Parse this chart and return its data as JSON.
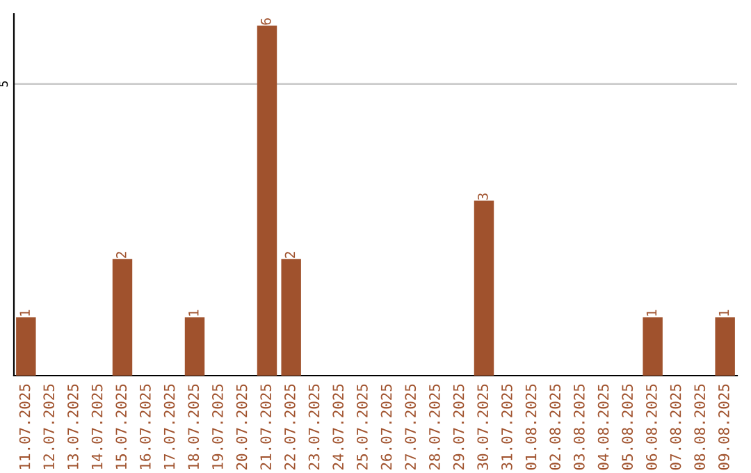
{
  "chart_data": {
    "type": "bar",
    "categories": [
      "11.07.2025",
      "12.07.2025",
      "13.07.2025",
      "14.07.2025",
      "15.07.2025",
      "16.07.2025",
      "17.07.2025",
      "18.07.2025",
      "19.07.2025",
      "20.07.2025",
      "21.07.2025",
      "22.07.2025",
      "23.07.2025",
      "24.07.2025",
      "25.07.2025",
      "26.07.2025",
      "27.07.2025",
      "28.07.2025",
      "29.07.2025",
      "30.07.2025",
      "31.07.2025",
      "01.08.2025",
      "02.08.2025",
      "03.08.2025",
      "04.08.2025",
      "05.08.2025",
      "06.08.2025",
      "07.08.2025",
      "08.08.2025",
      "09.08.2025"
    ],
    "values": [
      1,
      0,
      0,
      0,
      2,
      0,
      0,
      1,
      0,
      0,
      6,
      2,
      0,
      0,
      0,
      0,
      0,
      0,
      0,
      3,
      0,
      0,
      0,
      0,
      0,
      0,
      1,
      0,
      0,
      1
    ],
    "value_labels": [
      "1",
      null,
      null,
      null,
      "2",
      null,
      null,
      "1",
      null,
      null,
      "6",
      "2",
      null,
      null,
      null,
      null,
      null,
      null,
      null,
      "3",
      null,
      null,
      null,
      null,
      null,
      null,
      "1",
      null,
      null,
      "1"
    ],
    "color": "#a0522d",
    "ylim": [
      0,
      6.2
    ],
    "yticks": [
      5
    ],
    "grid": "y"
  }
}
